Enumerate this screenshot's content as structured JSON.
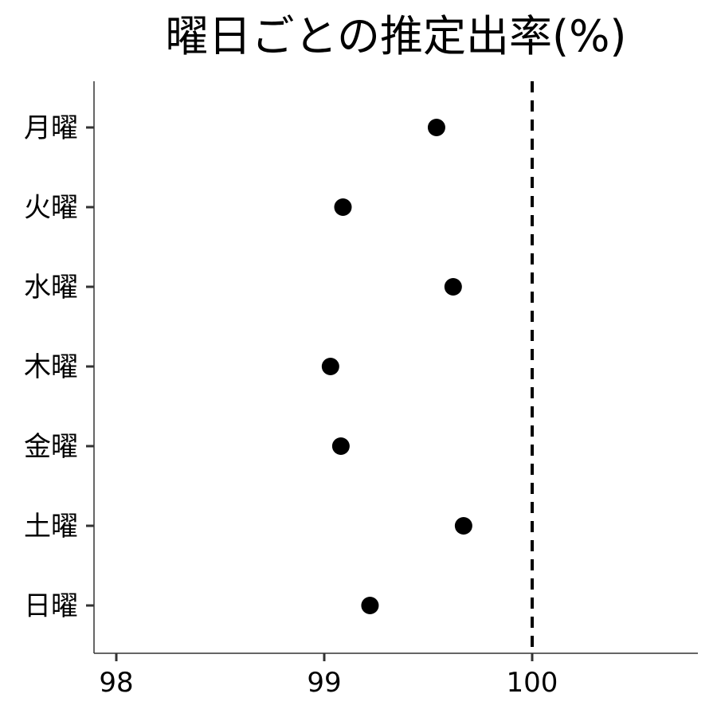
{
  "chart_data": {
    "type": "scatter",
    "title": "曜日ごとの推定出率(%)",
    "xlabel": "",
    "ylabel": "",
    "xlim": [
      97.9,
      100.8
    ],
    "x_ticks": [
      98,
      99,
      100
    ],
    "categories": [
      "月曜",
      "火曜",
      "水曜",
      "木曜",
      "金曜",
      "土曜",
      "日曜"
    ],
    "values": [
      99.54,
      99.09,
      99.62,
      99.03,
      99.08,
      99.67,
      99.22
    ],
    "reference_line": {
      "x": 100,
      "style": "dashed"
    },
    "grid": false,
    "legend": "none",
    "colors": {
      "point": "#000000",
      "axis": "#333333",
      "reference": "#000000"
    }
  }
}
